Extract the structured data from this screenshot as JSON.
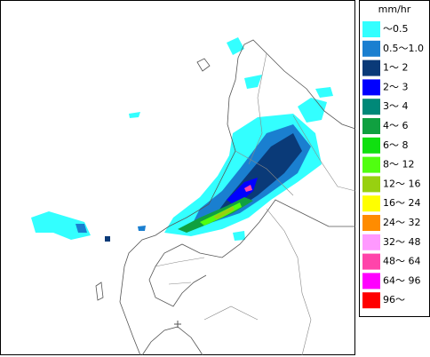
{
  "legend": {
    "unit": "mm/hr",
    "items": [
      {
        "label": "～0.5",
        "color": "#33ffff"
      },
      {
        "label": "0.5～1.0",
        "color": "#1a7fd0"
      },
      {
        "label": "1～ 2",
        "color": "#0a3a78"
      },
      {
        "label": "2～ 3",
        "color": "#0000ff"
      },
      {
        "label": "3～ 4",
        "color": "#008878"
      },
      {
        "label": "4～ 6",
        "color": "#10a040"
      },
      {
        "label": "6～ 8",
        "color": "#10e010"
      },
      {
        "label": "8～ 12",
        "color": "#50ff10"
      },
      {
        "label": "12～ 16",
        "color": "#98d010"
      },
      {
        "label": "16～ 24",
        "color": "#ffff00"
      },
      {
        "label": "24～ 32",
        "color": "#ff8c00"
      },
      {
        "label": "32～ 48",
        "color": "#ff99ff"
      },
      {
        "label": "48～ 64",
        "color": "#ff44aa"
      },
      {
        "label": "64～ 96",
        "color": "#ff00ff"
      },
      {
        "label": "96～",
        "color": "#ff0000"
      }
    ]
  }
}
